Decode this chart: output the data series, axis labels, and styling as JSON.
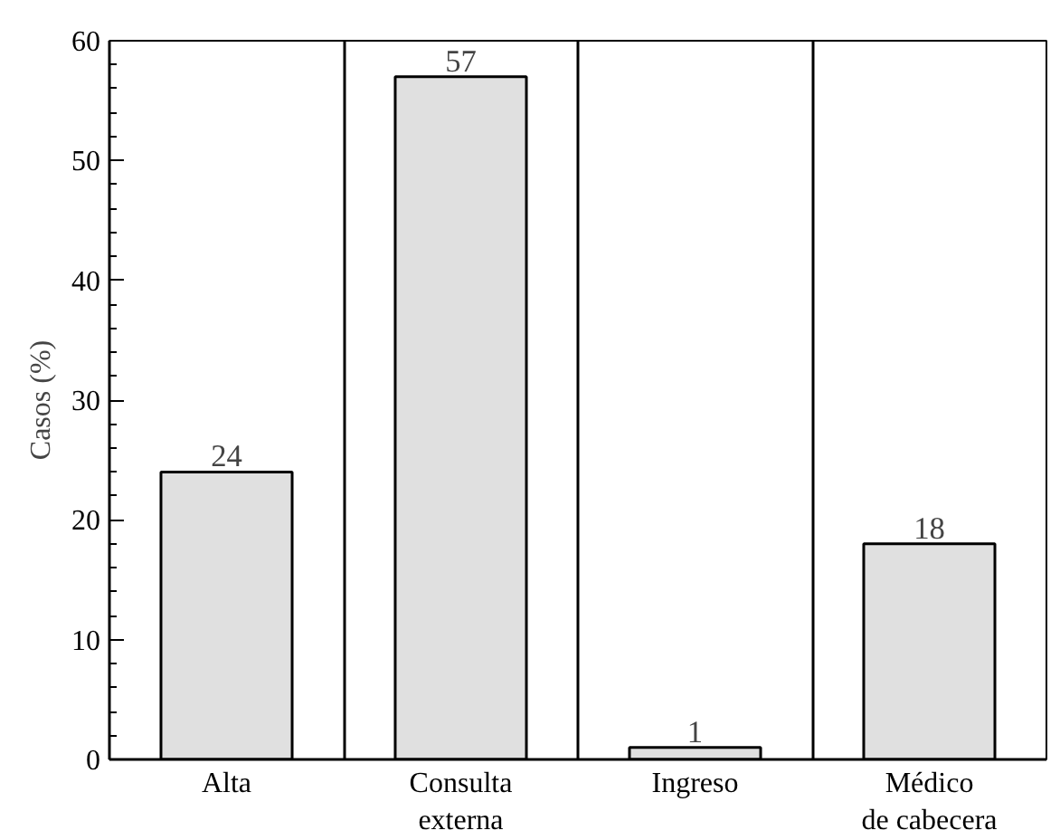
{
  "chart_data": {
    "type": "bar",
    "ylabel": "Casos (%)",
    "categories": [
      "Alta",
      "Consulta\nexterna",
      "Ingreso",
      "Médico\nde cabecera"
    ],
    "values": [
      24,
      57,
      1,
      18
    ],
    "color": "#e0e0e0",
    "ylim": [
      0,
      60
    ],
    "yticks": [
      0,
      10,
      20,
      30,
      40,
      50,
      60
    ],
    "data_labels": true,
    "grid": "x"
  }
}
